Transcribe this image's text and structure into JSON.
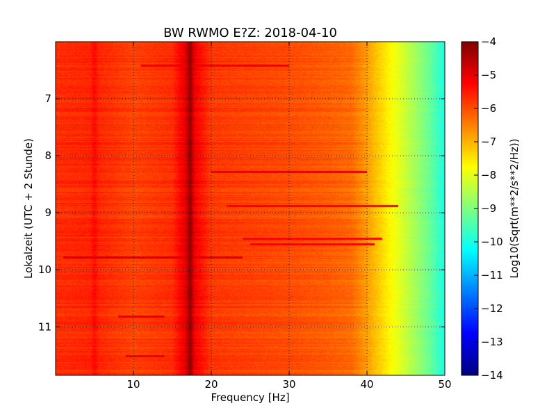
{
  "chart_data": {
    "type": "heatmap",
    "title": "BW RWMO E?Z: 2018-04-10",
    "xlabel": "Frequency [Hz]",
    "ylabel": "Lokalzeit (UTC + 2 Stunde)",
    "xlim": [
      0,
      50
    ],
    "ylim": [
      6.0,
      11.85
    ],
    "y_inverted": true,
    "grid": true,
    "x_ticks": [
      10,
      20,
      30,
      40,
      50
    ],
    "y_ticks": [
      7,
      8,
      9,
      10,
      11
    ],
    "colorbar": {
      "label": "Log10(Sqrt(m**2/s**2/Hz))",
      "range": [
        -14,
        -4
      ],
      "ticks": [
        -4,
        -5,
        -6,
        -7,
        -8,
        -9,
        -10,
        -11,
        -12,
        -13,
        -14
      ],
      "colormap": "jet"
    },
    "spectrum_profile": {
      "frequency": [
        0,
        5,
        10,
        15,
        17,
        20,
        25,
        30,
        35,
        38,
        40,
        42,
        44,
        46,
        48,
        50
      ],
      "level": [
        -5.7,
        -5.6,
        -5.9,
        -5.7,
        -4.9,
        -5.8,
        -5.9,
        -6.0,
        -6.15,
        -6.3,
        -6.8,
        -7.4,
        -8.0,
        -8.6,
        -9.2,
        -10.0
      ]
    },
    "notable_features": [
      {
        "frequency": 17.3,
        "description": "continuous vertical band, about -5"
      },
      {
        "frequency": 5.0,
        "description": "weak vertical line"
      }
    ],
    "horizontal_events": [
      {
        "time": 9.78,
        "fmin": 1,
        "fmax": 24,
        "level": -4.9
      },
      {
        "time": 8.28,
        "fmin": 20,
        "fmax": 40,
        "level": -5.0
      },
      {
        "time": 8.88,
        "fmin": 22,
        "fmax": 44,
        "level": -5.1
      },
      {
        "time": 9.45,
        "fmin": 24,
        "fmax": 42,
        "level": -5.2
      },
      {
        "time": 9.55,
        "fmin": 25,
        "fmax": 41,
        "level": -5.2
      },
      {
        "time": 6.42,
        "fmin": 11,
        "fmax": 30,
        "level": -5.1
      },
      {
        "time": 10.82,
        "fmin": 8,
        "fmax": 14,
        "level": -5.0
      },
      {
        "time": 11.52,
        "fmin": 9,
        "fmax": 14,
        "level": -5.0
      }
    ]
  }
}
